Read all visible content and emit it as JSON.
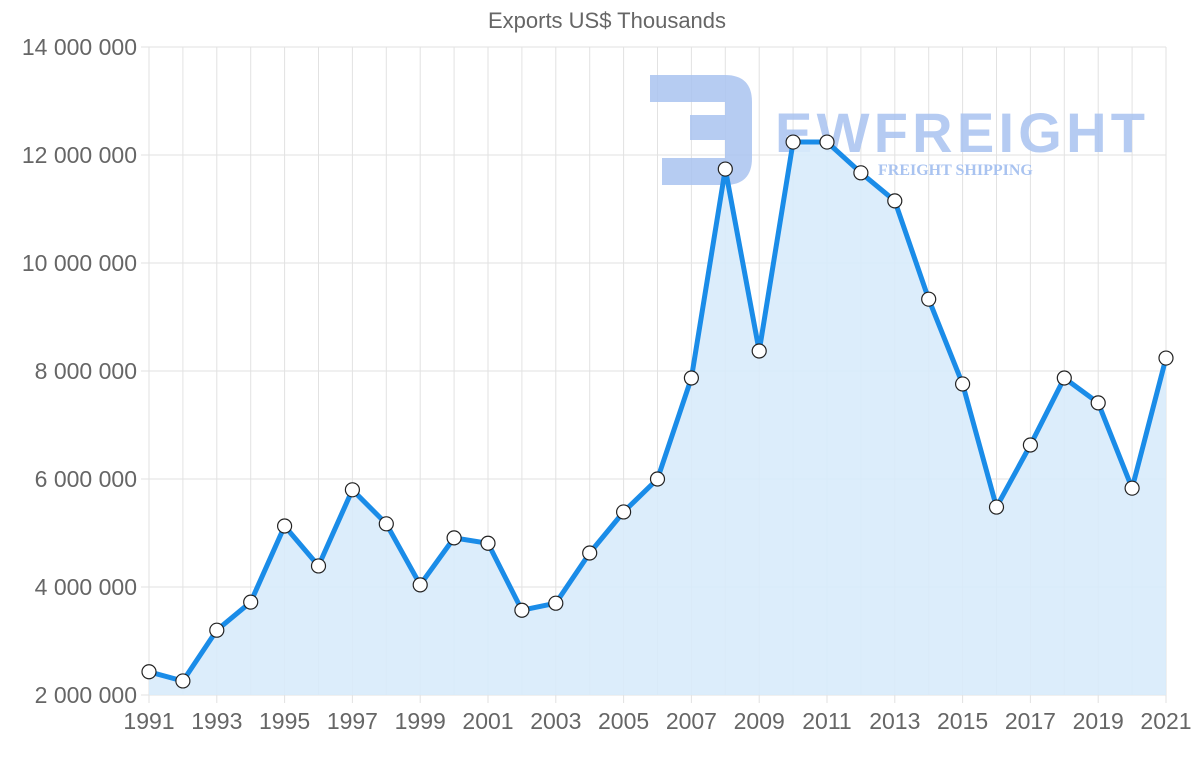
{
  "chart_data": {
    "type": "line",
    "title": "Exports US$ Thousands",
    "xlabel": "",
    "ylabel": "",
    "ylim": [
      2000000,
      14000000
    ],
    "yticks": [
      "14 000 000",
      "12 000 000",
      "10 000 000",
      "8 000 000",
      "6 000 000",
      "4 000 000",
      "2 000 000"
    ],
    "xtick_labels": [
      "1991",
      "1993",
      "1995",
      "1997",
      "1999",
      "2001",
      "2003",
      "2005",
      "2007",
      "2009",
      "2011",
      "2013",
      "2015",
      "2017",
      "2019",
      "2021"
    ],
    "grid": true,
    "legend": "none",
    "fill": true,
    "categories": [
      "1991",
      "1992",
      "1993",
      "1994",
      "1995",
      "1996",
      "1997",
      "1998",
      "1999",
      "2000",
      "2001",
      "2002",
      "2003",
      "2004",
      "2005",
      "2006",
      "2007",
      "2008",
      "2009",
      "2010",
      "2011",
      "2012",
      "2013",
      "2014",
      "2015",
      "2016",
      "2017",
      "2018",
      "2019",
      "2020",
      "2021"
    ],
    "series": [
      {
        "name": "Exports US$ Thousands",
        "values": [
          2430000,
          2260000,
          3200000,
          3720000,
          5130000,
          4390000,
          5800000,
          5170000,
          4040000,
          4910000,
          4810000,
          3570000,
          3700000,
          4630000,
          5390000,
          6000000,
          7870000,
          11740000,
          8370000,
          12240000,
          12240000,
          11670000,
          11150000,
          9330000,
          7760000,
          5480000,
          6630000,
          7870000,
          7410000,
          5830000,
          8240000
        ]
      }
    ]
  },
  "colors": {
    "line": "#1a8ce8",
    "fill": "#d8ebfb",
    "grid": "#e2e2e2",
    "text": "#666666",
    "watermark": "#a9c3f0"
  },
  "watermark": {
    "brand": "EWFREIGHT",
    "tagline": "FREIGHT SHIPPING"
  }
}
